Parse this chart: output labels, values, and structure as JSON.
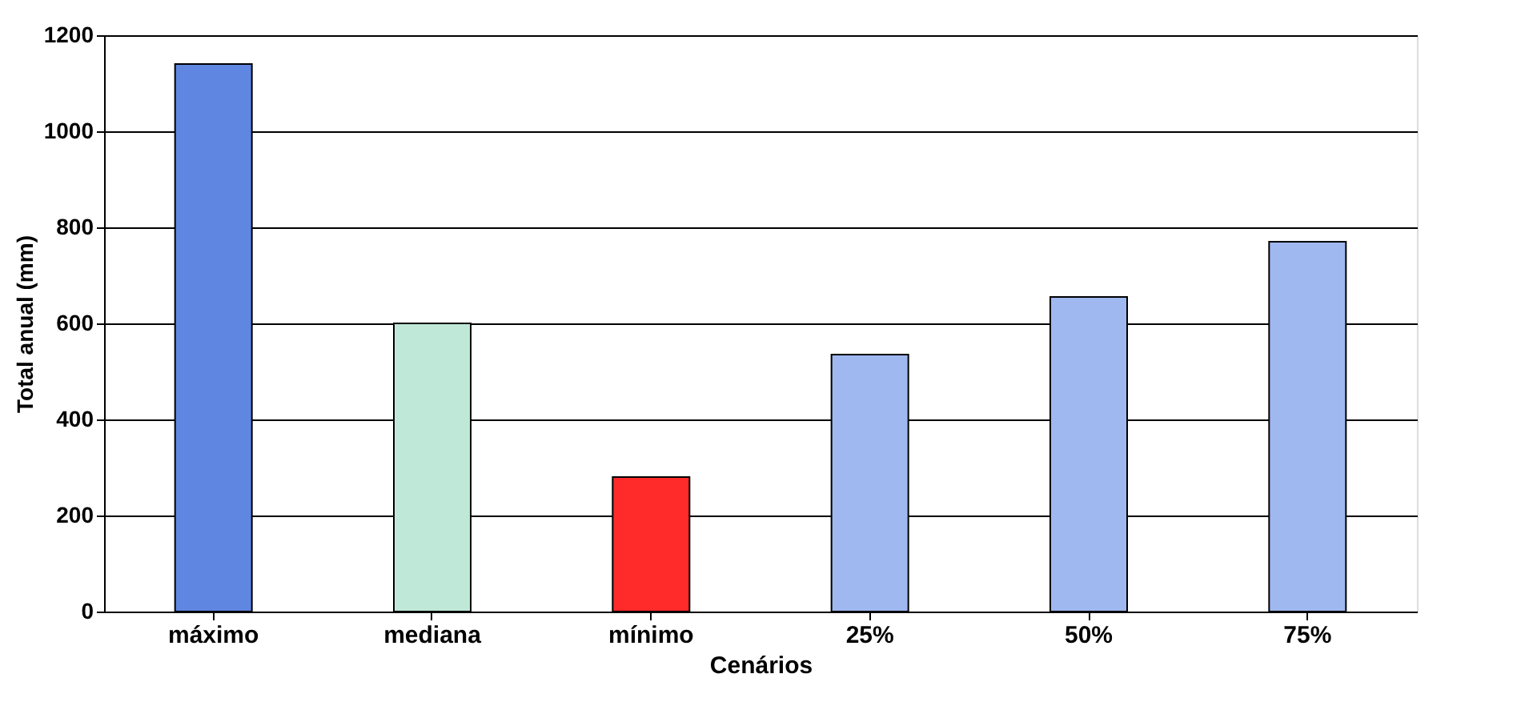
{
  "chart_data": {
    "type": "bar",
    "xlabel": "Cenários",
    "ylabel": "Total anual (mm)",
    "categories": [
      "máximo",
      "mediana",
      "mínimo",
      "25%",
      "50%",
      "75%"
    ],
    "values": [
      1140,
      600,
      280,
      535,
      655,
      770
    ],
    "colors": [
      "#5f86e0",
      "#bfe8d8",
      "#ff2a2a",
      "#9fb8f0",
      "#9fb8f0",
      "#9fb8f0"
    ],
    "ylim": [
      0,
      1200
    ],
    "yticks": [
      0,
      200,
      400,
      600,
      800,
      1000,
      1200
    ],
    "grid": "y"
  }
}
